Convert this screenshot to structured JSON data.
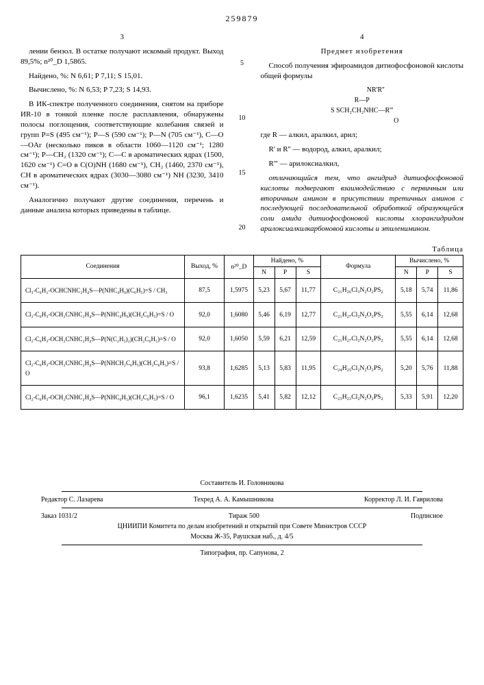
{
  "page_number": "259879",
  "col_left_num": "3",
  "col_right_num": "4",
  "left_col": {
    "p1": "лении бензол. В остатке получают искомый продукт. Выход 89,5%; n²⁰_D 1,5865.",
    "p2": "Найдено, %: N 6,61; P 7,11; S 15,01.",
    "p3": "Вычислено, %: N 6,53; P 7,23; S 14,93.",
    "p4": "В ИК-спектре полученного соединения, снятом на приборе ИR-10 в тонкой пленке после расплавления, обнаружены полосы поглощения, соответствующие колебания связей и групп P=S (495 см⁻¹); P—S (590 см⁻¹); P—N (705 см⁻¹), C—O—OAr (несколько пиков в области 1060—1120 см⁻¹; 1280 см⁻¹); P—CH₂ (1320 см⁻¹); C—C в ароматических ядрах (1500, 1620 см⁻¹) C=O в C(O)NH (1680 см⁻¹), CH₂ (1460, 2370 см⁻¹), CH в ароматических ядрах (3030—3080 см⁻¹) NH (3230, 3410 см⁻¹).",
    "p5": "Аналогично получают другие соединения, перечень и данные анализа которых приведены в таблице."
  },
  "right_col": {
    "heading": "Предмет изобретения",
    "p1": "Способ получения эфироамидов дитиофосфоновой кислоты общей формулы",
    "formula_l1": "NR'R''",
    "formula_l2": "R—P",
    "formula_l3": "S   SCH₂CH₂NHC—R'''",
    "formula_l4": "O",
    "p2": "где R — алкил, аралкил, арил;",
    "p3": "R' и R'' — водород, алкил, аралкил;",
    "p4": "R''' — арилоксиалкил,",
    "p5": "отличающийся тем, что ангидрид дитиофосфоновой кислоты подвергают взаимодействию с первичным или вторичным амином в присутствии третичных аминов с последующей последовательной обработкой образующейся соли амида дитиофосфоновой кислоты хлорангидридом арилоксиалкилкарбоновой кислоты и этиленимином."
  },
  "line_nums": [
    "5",
    "10",
    "15",
    "20"
  ],
  "table_label": "Таблица",
  "table": {
    "headers": {
      "compound": "Соединения",
      "yield": "Выход, %",
      "nd": "n²⁰_D",
      "found": "Найдено, %",
      "formula": "Формула",
      "calc": "Вычислено, %",
      "n": "N",
      "p": "P",
      "s": "S"
    },
    "rows": [
      {
        "compound": "Cl₃-C₆H₂-OCHCNHC₂H₄S—P(NHC₄H₉)(C₆H₅)=S / CH₃",
        "yield": "87,5",
        "nd": "1,5975",
        "fn": "5,23",
        "fp": "5,67",
        "fs": "11,77",
        "formula": "C₂₁H₂₆Cl₃N₂O₂PS₂",
        "cn": "5,18",
        "cp": "5,74",
        "cs": "11,86"
      },
      {
        "compound": "Cl₂-C₆H₃-OCH₂CNHC₂H₄S—P(NHC₄H₉)(CH₂C₆H₅)=S / O",
        "yield": "92,0",
        "nd": "1,6080",
        "fn": "5,46",
        "fp": "6,19",
        "fs": "12,77",
        "formula": "C₂₁H₂₇Cl₂N₂O₂PS₂",
        "cn": "5,55",
        "cp": "6,14",
        "cs": "12,68"
      },
      {
        "compound": "Cl₂-C₆H₃-OCH₂CNHC₂H₄S—P(N(C₂H₅)₂)(CH₂C₆H₅)=S / O",
        "yield": "92,0",
        "nd": "1,6050",
        "fn": "5,59",
        "fp": "6,21",
        "fs": "12,59",
        "formula": "C₂₁H₂₇Cl₂N₂O₂PS₂",
        "cn": "5,55",
        "cp": "6,14",
        "cs": "12,68"
      },
      {
        "compound": "Cl₂-C₆H₃-OCH₂CNHC₂H₄S—P(NHCH₂C₆H₅)(CH₂C₆H₅)=S / O",
        "yield": "93,8",
        "nd": "1,6285",
        "fn": "5,13",
        "fp": "5,83",
        "fs": "11,95",
        "formula": "C₂₄H₂₅Cl₂N₂O₂PS₂",
        "cn": "5,20",
        "cp": "5,76",
        "cs": "11,88"
      },
      {
        "compound": "Cl₂-C₆H₃-OCH₂CNHC₂H₄S—P(NHC₆H₅)(CH₂C₆H₅)=S / O",
        "yield": "96,1",
        "nd": "1,6235",
        "fn": "5,41",
        "fp": "5,82",
        "fs": "12,12",
        "formula": "C₂₃H₂₃Cl₂N₂O₂PS₂",
        "cn": "5,33",
        "cp": "5,91",
        "cs": "12,20"
      }
    ]
  },
  "footer": {
    "compiler": "Составитель И. Головникова",
    "editor": "Редактор С. Лазарева",
    "techred": "Техред А. А. Камышникова",
    "corrector": "Корректор Л. И. Гаврилова",
    "order": "Заказ 1031/2",
    "tirage": "Тираж 500",
    "sign": "Подписное",
    "org": "ЦНИИПИ Комитета по делам изобретений и открытий при Совете Министров СССР",
    "addr": "Москва Ж-35, Раушская наб., д. 4/5",
    "typ": "Типография, пр. Сапунова, 2"
  }
}
